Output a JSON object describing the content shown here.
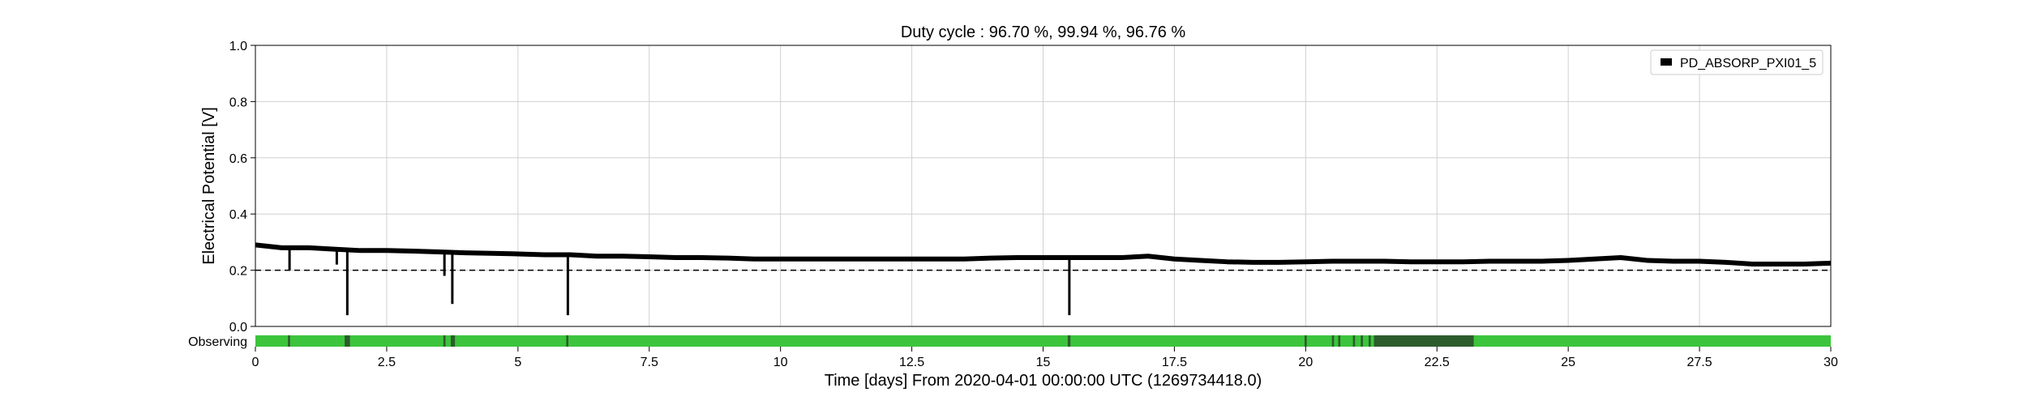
{
  "chart_data": {
    "type": "line",
    "title": "Duty cycle : 96.70 %, 99.94 %, 96.76 %",
    "xlabel": "Time [days] From 2020-04-01 00:00:00 UTC (1269734418.0)",
    "ylabel": "Electrical Potential [V]",
    "xlim": [
      0,
      30
    ],
    "ylim": [
      0,
      1
    ],
    "x_ticks": [
      "0",
      "2.5",
      "5",
      "7.5",
      "10",
      "12.5",
      "15",
      "17.5",
      "20",
      "22.5",
      "25",
      "27.5",
      "30"
    ],
    "x_tick_values": [
      0,
      2.5,
      5,
      7.5,
      10,
      12.5,
      15,
      17.5,
      20,
      22.5,
      25,
      27.5,
      30
    ],
    "y_ticks": [
      "0.0",
      "0.2",
      "0.4",
      "0.6",
      "0.8",
      "1.0"
    ],
    "y_tick_values": [
      0,
      0.2,
      0.4,
      0.6,
      0.8,
      1.0
    ],
    "grid": true,
    "legend": {
      "position": "top-right",
      "entries": [
        "PD_ABSORP_PXI01_5"
      ]
    },
    "threshold": {
      "value": 0.2,
      "style": "dashed"
    },
    "series": [
      {
        "name": "PD_ABSORP_PXI01_5",
        "color": "#000000",
        "x": [
          0,
          0.5,
          1.0,
          1.5,
          2.0,
          2.5,
          3.0,
          3.5,
          4.0,
          4.5,
          5.0,
          5.5,
          6.0,
          6.5,
          7.0,
          7.5,
          8.0,
          8.5,
          9.0,
          9.5,
          10.0,
          10.5,
          11.0,
          11.5,
          12.0,
          12.5,
          13.0,
          13.5,
          14.0,
          14.5,
          15.0,
          15.5,
          16.0,
          16.5,
          17.0,
          17.5,
          18.0,
          18.5,
          19.0,
          19.5,
          20.0,
          20.5,
          21.0,
          21.5,
          22.0,
          22.5,
          23.0,
          23.5,
          24.0,
          24.5,
          25.0,
          25.5,
          26.0,
          26.5,
          27.0,
          27.5,
          28.0,
          28.5,
          29.0,
          29.5,
          30.0
        ],
        "y": [
          0.29,
          0.28,
          0.28,
          0.275,
          0.27,
          0.27,
          0.268,
          0.265,
          0.262,
          0.26,
          0.258,
          0.255,
          0.255,
          0.25,
          0.25,
          0.248,
          0.245,
          0.245,
          0.243,
          0.24,
          0.24,
          0.24,
          0.24,
          0.24,
          0.24,
          0.24,
          0.24,
          0.24,
          0.243,
          0.245,
          0.245,
          0.245,
          0.245,
          0.245,
          0.25,
          0.24,
          0.235,
          0.23,
          0.228,
          0.228,
          0.23,
          0.232,
          0.232,
          0.232,
          0.23,
          0.23,
          0.23,
          0.232,
          0.232,
          0.232,
          0.235,
          0.24,
          0.245,
          0.235,
          0.232,
          0.232,
          0.228,
          0.222,
          0.222,
          0.222,
          0.225
        ]
      }
    ],
    "dips": [
      {
        "x": 0.65,
        "y": 0.2
      },
      {
        "x": 1.55,
        "y": 0.22
      },
      {
        "x": 1.75,
        "y": 0.04
      },
      {
        "x": 3.6,
        "y": 0.18
      },
      {
        "x": 3.75,
        "y": 0.08
      },
      {
        "x": 5.95,
        "y": 0.04
      },
      {
        "x": 15.5,
        "y": 0.04
      }
    ],
    "segment_bar": {
      "label": "Observing",
      "on_color": "#3cc43c",
      "off_color": "#2c5c2c",
      "off_segments": [
        [
          0.62,
          0.66
        ],
        [
          1.7,
          1.8
        ],
        [
          3.58,
          3.62
        ],
        [
          3.72,
          3.8
        ],
        [
          5.92,
          5.96
        ],
        [
          15.47,
          15.52
        ],
        [
          19.98,
          20.02
        ],
        [
          20.5,
          20.54
        ],
        [
          20.62,
          20.66
        ],
        [
          20.9,
          20.94
        ],
        [
          21.05,
          21.09
        ],
        [
          21.2,
          21.24
        ],
        [
          21.3,
          23.2
        ]
      ]
    }
  }
}
